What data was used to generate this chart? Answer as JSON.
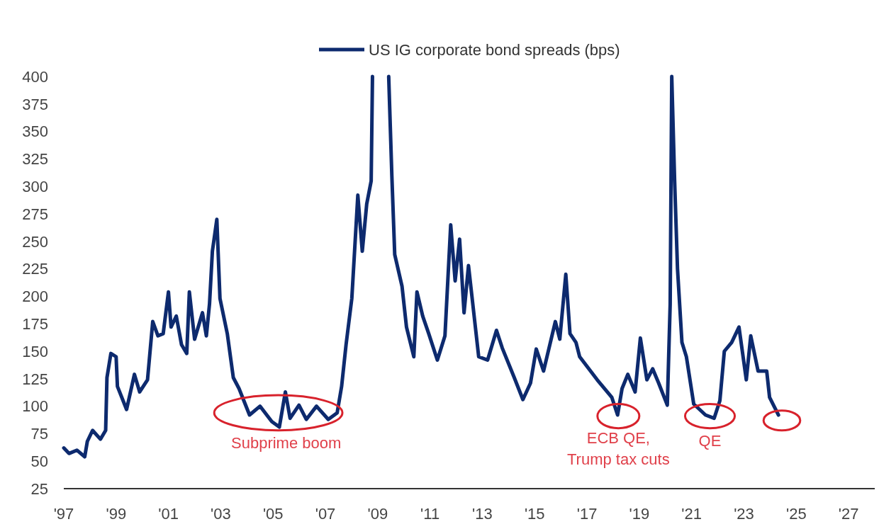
{
  "chart_data": {
    "type": "line",
    "x": [
      1997.0,
      1997.2,
      1997.5,
      1997.8,
      1997.9,
      1998.1,
      1998.4,
      1998.6,
      1998.65,
      1998.8,
      1999.0,
      1999.05,
      1999.4,
      1999.7,
      1999.9,
      2000.2,
      2000.4,
      2000.6,
      2000.8,
      2001.0,
      2001.1,
      2001.3,
      2001.5,
      2001.7,
      2001.8,
      2002.0,
      2002.3,
      2002.45,
      2002.57,
      2002.68,
      2002.85,
      2002.97,
      2003.25,
      2003.48,
      2003.7,
      2004.1,
      2004.5,
      2004.95,
      2005.24,
      2005.47,
      2005.65,
      2005.99,
      2006.27,
      2006.66,
      2007.11,
      2007.45,
      2007.62,
      2007.79,
      2008.01,
      2008.24,
      2008.41,
      2008.58,
      2008.75,
      2008.8,
      2009.1,
      2009.42,
      2009.54,
      2009.65,
      2009.93,
      2010.1,
      2010.38,
      2010.5,
      2010.72,
      2010.95,
      2011.28,
      2011.57,
      2011.79,
      2011.96,
      2012.13,
      2012.3,
      2012.47,
      2012.86,
      2013.2,
      2013.54,
      2013.76,
      2014.22,
      2014.55,
      2014.84,
      2015.06,
      2015.34,
      2015.79,
      2015.96,
      2016.19,
      2016.35,
      2016.58,
      2016.72,
      2017.39,
      2017.95,
      2018.17,
      2018.34,
      2018.56,
      2018.84,
      2019.04,
      2019.29,
      2019.51,
      2019.74,
      2020.07,
      2020.18,
      2020.24,
      2020.35,
      2020.46,
      2020.63,
      2020.8,
      2021.08,
      2021.53,
      2021.86,
      2022.08,
      2022.25,
      2022.53,
      2022.81,
      2023.09,
      2023.26,
      2023.54,
      2023.87,
      2023.98,
      2024.32
    ],
    "series": [
      {
        "name": "US IG corporate bond spreads (bps)",
        "color": "#0d2a6e",
        "values": [
          62,
          57,
          60,
          54,
          68,
          78,
          70,
          78,
          126,
          148,
          145,
          118,
          97,
          129,
          113,
          124,
          177,
          164,
          166,
          204,
          172,
          182,
          156,
          148,
          204,
          161,
          185,
          164,
          193,
          241,
          270,
          198,
          166,
          126,
          116,
          92,
          100,
          86,
          81,
          113,
          89,
          101,
          88,
          100,
          88,
          94,
          118,
          156,
          198,
          292,
          241,
          284,
          305,
          400,
          null,
          400,
          310,
          238,
          209,
          172,
          145,
          204,
          182,
          166,
          142,
          164,
          265,
          214,
          252,
          185,
          228,
          145,
          142,
          169,
          153,
          126,
          106,
          121,
          152,
          132,
          177,
          161,
          220,
          166,
          158,
          145,
          124,
          108,
          92,
          116,
          129,
          113,
          162,
          124,
          134,
          121,
          101,
          193,
          400,
          305,
          225,
          158,
          145,
          102,
          92,
          89,
          105,
          150,
          158,
          172,
          124,
          164,
          132,
          132,
          108,
          92
        ]
      }
    ],
    "xlim": [
      1997,
      2028
    ],
    "xticks": [
      {
        "value": 1997,
        "label": "'97"
      },
      {
        "value": 1999,
        "label": "'99"
      },
      {
        "value": 2001,
        "label": "'01"
      },
      {
        "value": 2003,
        "label": "'03"
      },
      {
        "value": 2005,
        "label": "'05"
      },
      {
        "value": 2007,
        "label": "'07"
      },
      {
        "value": 2009,
        "label": "'09"
      },
      {
        "value": 2011,
        "label": "'11"
      },
      {
        "value": 2013,
        "label": "'13"
      },
      {
        "value": 2015,
        "label": "'15"
      },
      {
        "value": 2017,
        "label": "'17"
      },
      {
        "value": 2019,
        "label": "'19"
      },
      {
        "value": 2021,
        "label": "'21"
      },
      {
        "value": 2023,
        "label": "'23"
      },
      {
        "value": 2025,
        "label": "'25"
      },
      {
        "value": 2027,
        "label": "'27"
      }
    ],
    "ylim": [
      25,
      400
    ],
    "yticks": [
      25,
      50,
      75,
      100,
      125,
      150,
      175,
      200,
      225,
      250,
      275,
      300,
      325,
      350,
      375,
      400
    ],
    "grid": false,
    "legend": "top",
    "annotations": [
      {
        "text": "Subprime boom",
        "x": 2005.5,
        "y": 90
      },
      {
        "text": "ECB QE,\nTrump tax cuts",
        "x": 2018.2,
        "y": 92
      },
      {
        "text": "QE",
        "x": 2021.7,
        "y": 92
      }
    ]
  }
}
